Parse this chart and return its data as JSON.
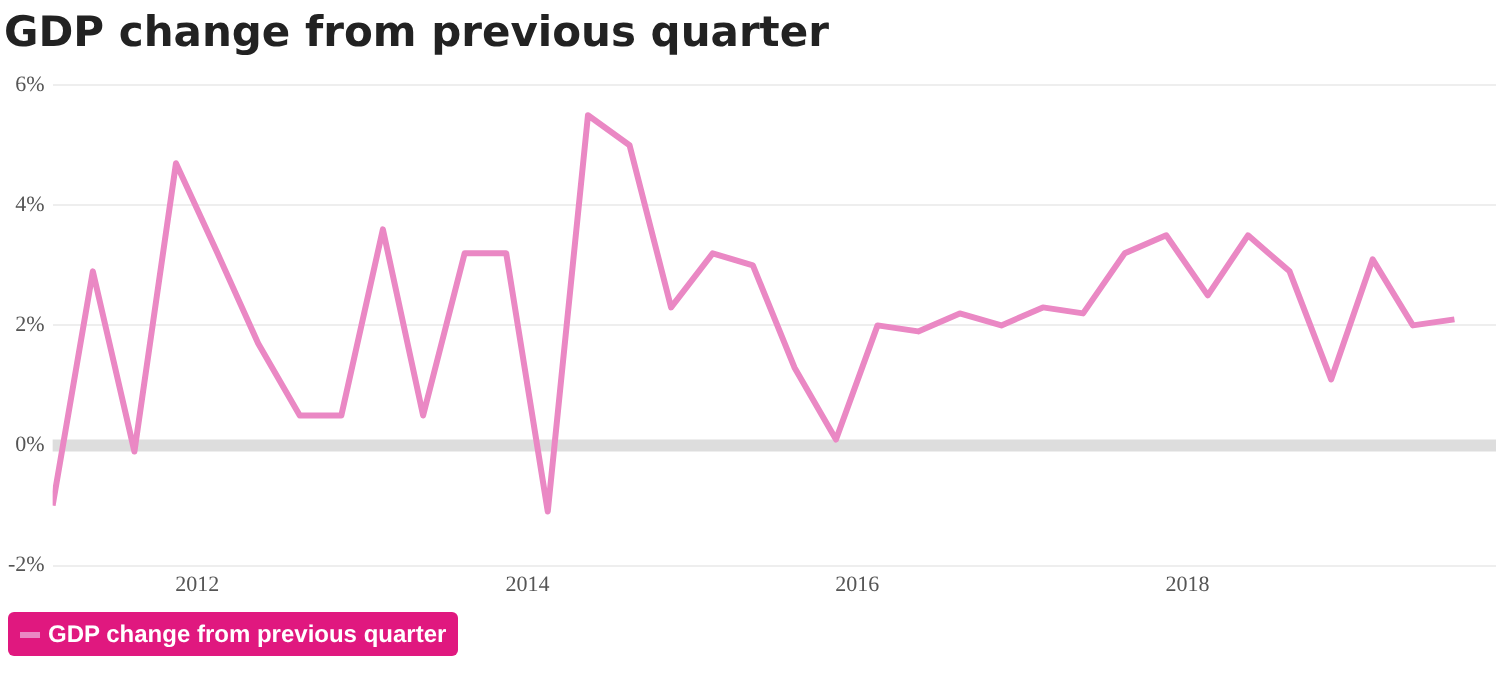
{
  "chart_data": {
    "type": "line",
    "title": "GDP change from previous quarter",
    "x": [
      "2011-02-15",
      "2011-05-15",
      "2011-08-15",
      "2011-11-15",
      "2012-02-15",
      "2012-05-15",
      "2012-08-15",
      "2012-11-15",
      "2013-02-15",
      "2013-05-15",
      "2013-08-15",
      "2013-11-15",
      "2014-02-15",
      "2014-05-15",
      "2014-08-15",
      "2014-11-15",
      "2015-02-15",
      "2015-05-15",
      "2015-08-15",
      "2015-11-15",
      "2016-02-15",
      "2016-05-15",
      "2016-08-15",
      "2016-11-15",
      "2017-02-15",
      "2017-05-15",
      "2017-08-15",
      "2017-11-15",
      "2018-02-15",
      "2018-05-15",
      "2018-08-15",
      "2018-11-15",
      "2019-02-15",
      "2019-05-15",
      "2019-08-15"
    ],
    "series": [
      {
        "name": "GDP change from previous quarter",
        "color": "#ea88c4",
        "values": [
          -1.0,
          2.9,
          -0.1,
          4.7,
          3.2,
          1.7,
          0.5,
          0.5,
          3.6,
          0.5,
          3.2,
          3.2,
          -1.1,
          5.5,
          5.0,
          2.3,
          3.2,
          3.0,
          1.3,
          0.1,
          2.0,
          1.9,
          2.2,
          2.0,
          2.3,
          2.2,
          3.2,
          3.5,
          2.5,
          3.5,
          2.9,
          1.1,
          3.1,
          2.0,
          2.1
        ]
      }
    ],
    "xlim": [
      "2011-02-15",
      "2019-11-15"
    ],
    "xticks": [
      {
        "value": "2012",
        "label": "2012"
      },
      {
        "value": "2014",
        "label": "2014"
      },
      {
        "value": "2016",
        "label": "2016"
      },
      {
        "value": "2018",
        "label": "2018"
      }
    ],
    "ylim": [
      -2,
      6
    ],
    "yticks": [
      {
        "value": -2,
        "label": "-2%"
      },
      {
        "value": 0,
        "label": "0%"
      },
      {
        "value": 2,
        "label": "2%"
      },
      {
        "value": 4,
        "label": "4%"
      },
      {
        "value": 6,
        "label": "6%"
      }
    ],
    "ref_lines": [
      {
        "axis": "y",
        "value": 0,
        "color": "#dddddd"
      }
    ],
    "grid": "y",
    "legend": "bottom left",
    "marker": "none",
    "line_style": "solid"
  }
}
